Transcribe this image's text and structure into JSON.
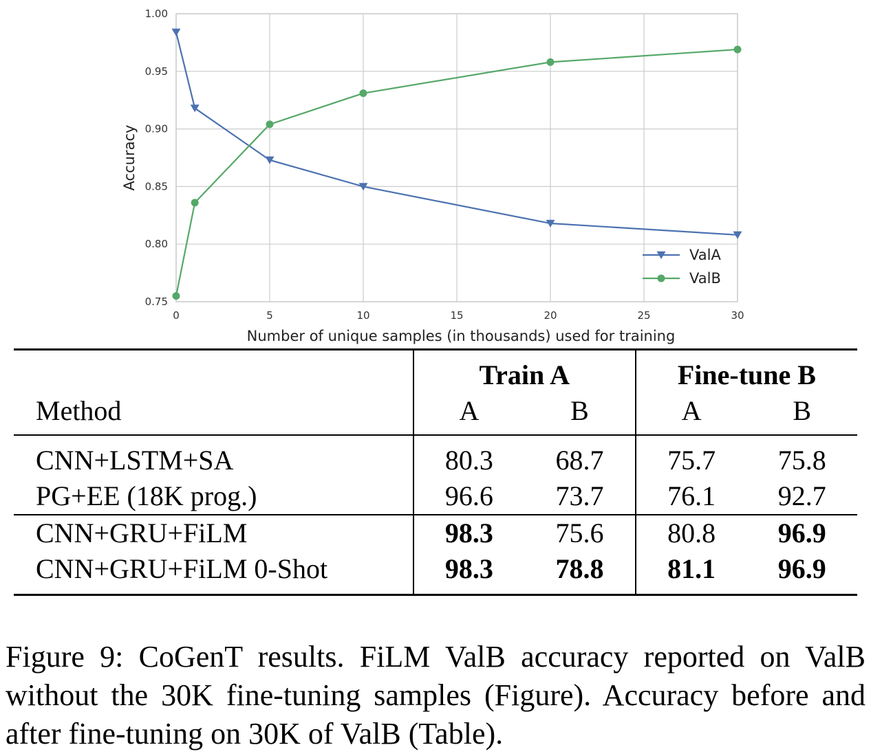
{
  "chart_data": {
    "type": "line",
    "xlabel": "Number of unique samples (in thousands) used for training",
    "ylabel": "Accuracy",
    "xlim": [
      0,
      30
    ],
    "ylim": [
      0.75,
      1.0
    ],
    "xticks": [
      "0",
      "5",
      "10",
      "15",
      "20",
      "25",
      "30"
    ],
    "yticks": [
      "0.75",
      "0.80",
      "0.85",
      "0.90",
      "0.95",
      "1.00"
    ],
    "grid": true,
    "legend_position": "lower-right",
    "series": [
      {
        "name": "ValA",
        "color": "#4c72b0",
        "marker": "triangle-down",
        "x": [
          0,
          1,
          5,
          10,
          20,
          30
        ],
        "y": [
          0.984,
          0.918,
          0.873,
          0.85,
          0.818,
          0.808
        ]
      },
      {
        "name": "ValB",
        "color": "#55a868",
        "marker": "circle",
        "x": [
          0,
          1,
          5,
          10,
          20,
          30
        ],
        "y": [
          0.755,
          0.836,
          0.904,
          0.931,
          0.958,
          0.969
        ]
      }
    ]
  },
  "table": {
    "method_header": "Method",
    "groups": [
      "Train A",
      "Fine-tune B"
    ],
    "subheaders": [
      "A",
      "B",
      "A",
      "B"
    ],
    "rows": [
      {
        "method": "CNN+LSTM+SA",
        "values": [
          "80.3",
          "68.7",
          "75.7",
          "75.8"
        ],
        "bold": [
          false,
          false,
          false,
          false
        ]
      },
      {
        "method": "PG+EE (18K prog.)",
        "values": [
          "96.6",
          "73.7",
          "76.1",
          "92.7"
        ],
        "bold": [
          false,
          false,
          false,
          false
        ]
      },
      {
        "method": "CNN+GRU+FiLM",
        "values": [
          "98.3",
          "75.6",
          "80.8",
          "96.9"
        ],
        "bold": [
          true,
          false,
          false,
          true
        ]
      },
      {
        "method": "CNN+GRU+FiLM 0-Shot",
        "values": [
          "98.3",
          "78.8",
          "81.1",
          "96.9"
        ],
        "bold": [
          true,
          true,
          true,
          true
        ]
      }
    ]
  },
  "caption": "Figure 9: CoGenT results. FiLM ValB accuracy reported on ValB without the 30K fine-tuning samples (Figure). Accuracy before and after fine-tuning on 30K of ValB (Table)."
}
